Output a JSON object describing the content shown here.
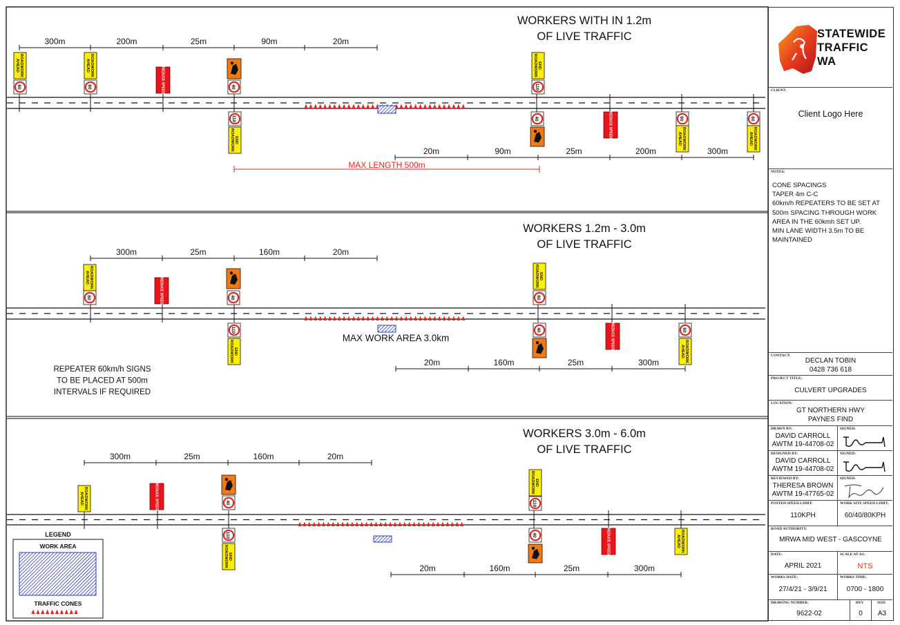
{
  "panels": [
    {
      "title": [
        "WORKERS WITH IN 1.2m",
        "OF LIVE TRAFFIC"
      ],
      "top_dims": [
        "300m",
        "200m",
        "25m",
        "90m",
        "20m"
      ],
      "bottom_dims": [
        "20m",
        "90m",
        "25m",
        "200m",
        "300m"
      ],
      "max_length": "MAX LENGTH 500m"
    },
    {
      "title": [
        "WORKERS 1.2m - 3.0m",
        "OF LIVE TRAFFIC"
      ],
      "top_dims": [
        "300m",
        "25m",
        "160m",
        "20m"
      ],
      "bottom_dims": [
        "20m",
        "160m",
        "25m",
        "300m"
      ],
      "max_work_area": "MAX WORK AREA 3.0km",
      "repeater_note": [
        "REPEATER 60km/h SIGNS",
        "TO BE PLACED AT 500m",
        "INTERVALS IF REQUIRED"
      ]
    },
    {
      "title": [
        "WORKERS 3.0m - 6.0m",
        "OF LIVE TRAFFIC"
      ],
      "top_dims": [
        "300m",
        "25m",
        "160m",
        "20m"
      ],
      "bottom_dims": [
        "20m",
        "160m",
        "25m",
        "300m"
      ]
    }
  ],
  "signs": {
    "roadwork_ahead": [
      "ROADWORK",
      "AHEAD"
    ],
    "end_roadwork": [
      "END",
      "ROADWORK"
    ],
    "reduce_speed": "REDUCE SPEED",
    "speed_60": "60",
    "speed_40": "40",
    "speed_80": "80",
    "speed_110": "110"
  },
  "legend": {
    "title": "LEGEND",
    "work_area": "WORK AREA",
    "traffic_cones": "TRAFFIC CONES"
  },
  "title_block": {
    "company_lines": "STATEWIDE\nTRAFFIC\nWA",
    "client_label": "CLIENT:",
    "client_value": "Client Logo Here",
    "notes_label": "NOTES:",
    "notes": "CONE SPACINGS\nTAPER 4m C-C\n60km/h REPEATERS TO BE SET AT 500m SPACING THROUGH WORK AREA IN THE 60kmh SET UP.\nMIN LANE WIDTH 3.5m TO BE MAINTAINED",
    "contact_label": "CONTACT:",
    "contact_name": "DECLAN TOBIN",
    "contact_phone": "0428 736 618",
    "project_label": "PROJECT TITLE:",
    "project_value": "CULVERT UPGRADES",
    "location_label": "LOCATION:",
    "location_line1": "GT NORTHERN HWY",
    "location_line2": "PAYNES FIND",
    "drawn_label": "DRAWN BY:",
    "drawn_name": "DAVID CARROLL",
    "drawn_id": "AWTM 19-44708-02",
    "designed_label": "DESIGNED BY:",
    "designed_name": "DAVID CARROLL",
    "designed_id": "AWTM 19-44708-02",
    "reviewed_label": "REVIEWED BY:",
    "reviewed_name": "THERESA BROWN",
    "reviewed_id": "AWTM 19-47765-02",
    "signed_label": "SIGNED:",
    "posted_speed_label": "POSTED SPEED LIMIT:",
    "posted_speed_value": "110KPH",
    "work_speed_label": "WORK SITE SPEED LIMIT:",
    "work_speed_value": "60/40/80KPH",
    "road_authority_label": "ROAD AUTHORITY:",
    "road_authority_value": "MRWA  MID WEST - GASCOYNE",
    "date_label": "DATE:",
    "date_value": "APRIL 2021",
    "scale_label": "SCALE AT A3:",
    "scale_value": "NTS",
    "works_date_label": "WORKS DATE:",
    "works_date_value": "27/4/21 - 3/9/21",
    "works_time_label": "WORKS TIME:",
    "works_time_value": "0700 - 1800",
    "drawing_number_label": "DRAWING NUMBER:",
    "drawing_number_value": "9622-02",
    "rev_label": "REV",
    "rev_value": "0",
    "size_label": "SIZE",
    "size_value": "A3"
  }
}
